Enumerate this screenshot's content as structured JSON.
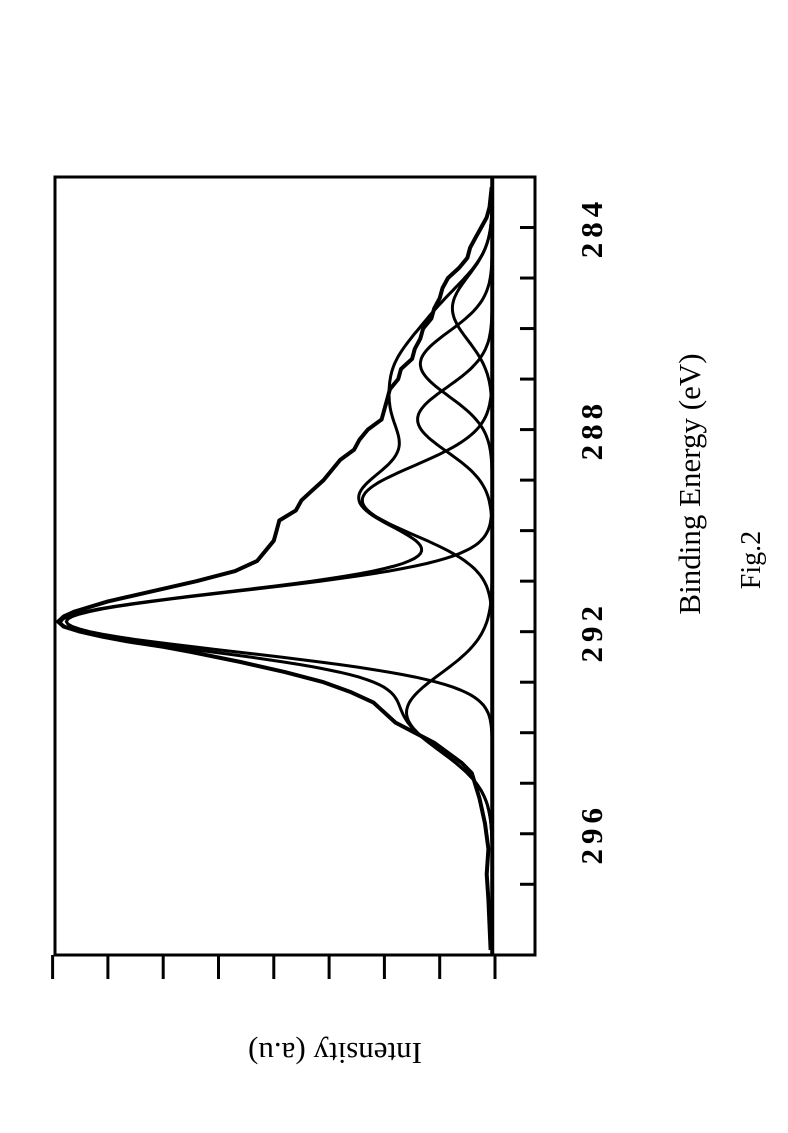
{
  "figure": {
    "caption": "Fig.2"
  },
  "chart_data": {
    "type": "line",
    "title": "",
    "xlabel": "Binding Energy (eV)",
    "ylabel": "Intensity (a.u)",
    "x_reversed": true,
    "xlim": [
      298.4,
      283.0
    ],
    "ylim": [
      0,
      8.3
    ],
    "x_ticks": [
      296,
      292,
      288,
      284
    ],
    "x_ticks_minor": [
      297,
      295,
      294,
      293,
      291,
      290,
      289,
      287,
      286,
      285
    ],
    "y_ticks": [
      0,
      1,
      2,
      3,
      4,
      5,
      6,
      7,
      8
    ],
    "y_tick_labels_shown": false,
    "orientation": "page rotated 90 degrees counter-clockwise",
    "line_color": "#000000",
    "baseline": 0.05,
    "series": [
      {
        "role": "measured",
        "x": [
          298.3,
          297.8,
          297.3,
          296.8,
          296.3,
          295.8,
          295.3,
          294.8,
          294.6,
          294.4,
          294.2,
          294.0,
          293.8,
          293.6,
          293.4,
          293.2,
          293.0,
          292.8,
          292.6,
          292.4,
          292.3,
          292.2,
          292.1,
          292.0,
          291.9,
          291.8,
          291.7,
          291.6,
          291.4,
          291.2,
          291.0,
          290.8,
          290.6,
          290.4,
          290.2,
          290.0,
          289.8,
          289.6,
          289.4,
          289.2,
          289.0,
          288.8,
          288.6,
          288.4,
          288.2,
          288.0,
          287.8,
          287.6,
          287.4,
          287.2,
          287.0,
          286.8,
          286.6,
          286.4,
          286.2,
          286.0,
          285.8,
          285.6,
          285.4,
          285.2,
          285.0,
          284.8,
          284.6,
          284.4,
          284.2,
          284.0,
          283.8,
          283.6,
          283.4,
          283.2
        ],
        "y": [
          0.08,
          0.1,
          0.12,
          0.15,
          0.12,
          0.18,
          0.28,
          0.42,
          0.6,
          0.85,
          1.1,
          1.45,
          1.8,
          2.0,
          2.2,
          2.6,
          3.1,
          3.8,
          4.6,
          5.5,
          6.0,
          6.6,
          7.1,
          7.5,
          7.8,
          7.9,
          7.8,
          7.6,
          7.0,
          6.2,
          5.4,
          4.7,
          4.3,
          4.15,
          4.0,
          3.95,
          3.9,
          3.6,
          3.5,
          3.3,
          3.1,
          2.95,
          2.8,
          2.55,
          2.45,
          2.3,
          2.05,
          2.0,
          1.95,
          1.9,
          1.75,
          1.7,
          1.5,
          1.45,
          1.35,
          1.3,
          1.15,
          1.1,
          1.0,
          0.95,
          0.85,
          0.65,
          0.5,
          0.45,
          0.35,
          0.25,
          0.15,
          0.1,
          0.08,
          0.06
        ]
      },
      {
        "role": "fitted component",
        "center": 291.8,
        "height": 7.7,
        "fwhm": 1.4
      },
      {
        "role": "fitted component",
        "center": 289.4,
        "height": 2.35,
        "fwhm": 1.6
      },
      {
        "role": "fitted component",
        "center": 287.8,
        "height": 1.35,
        "fwhm": 1.5
      },
      {
        "role": "fitted component",
        "center": 286.7,
        "height": 1.3,
        "fwhm": 1.5
      },
      {
        "role": "fitted component",
        "center": 285.6,
        "height": 0.72,
        "fwhm": 1.5
      },
      {
        "role": "fitted component",
        "center": 293.6,
        "height": 1.55,
        "fwhm": 1.8
      },
      {
        "role": "fitted envelope",
        "sum_of_components": true
      }
    ]
  }
}
